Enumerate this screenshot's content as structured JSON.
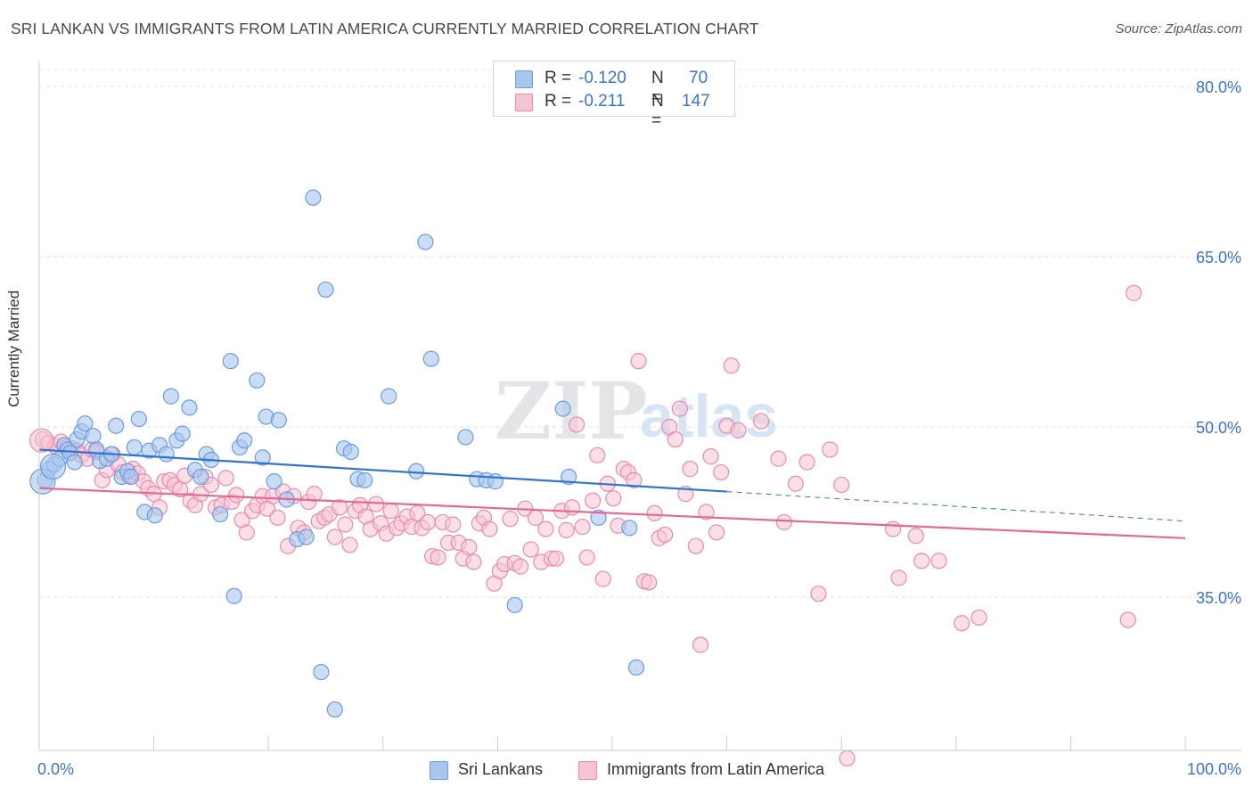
{
  "title": "SRI LANKAN VS IMMIGRANTS FROM LATIN AMERICA CURRENTLY MARRIED CORRELATION CHART",
  "source": "Source: ZipAtlas.com",
  "watermark": "ZIPatlas",
  "legend": {
    "series1": {
      "r_label": "R = ",
      "r_value": "-0.120",
      "n_label": "N = ",
      "n_value": "70"
    },
    "series2": {
      "r_label": "R = ",
      "r_value": "-0.211",
      "n_label": "N = ",
      "n_value": "147"
    }
  },
  "colors": {
    "blue_fill": "#a9c6ec",
    "blue_stroke": "#6b9be0",
    "blue_line": "#2f74d0",
    "pink_fill": "#f7c4d4",
    "pink_stroke": "#e98bab",
    "pink_line": "#e56894",
    "tick_label": "#3c74c8",
    "grid": "#dcdfe3"
  },
  "chart_data": {
    "type": "scatter",
    "title": "SRI LANKAN VS IMMIGRANTS FROM LATIN AMERICA CURRENTLY MARRIED CORRELATION CHART",
    "xlabel": "",
    "ylabel": "Currently Married",
    "xlim": [
      0,
      100
    ],
    "ylim": [
      20,
      82
    ],
    "x_tick_labels": [
      "0.0%",
      "100.0%"
    ],
    "y_ticks": [
      35,
      50,
      65,
      80
    ],
    "y_tick_labels": [
      "35.0%",
      "50.0%",
      "65.0%",
      "80.0%"
    ],
    "grid": true,
    "legend_position": "top-center",
    "series": [
      {
        "name": "Sri Lankans",
        "color": "#a9c6ec",
        "trend": {
          "x": [
            0,
            60
          ],
          "y": [
            48.0,
            44.3
          ],
          "dashed_to": [
            100,
            41.7
          ]
        },
        "points": [
          [
            0.5,
            45.3
          ],
          [
            0.9,
            46.3
          ],
          [
            1.3,
            46.7
          ],
          [
            1.8,
            47.2
          ],
          [
            2.2,
            48.4
          ],
          [
            2.5,
            48.0
          ],
          [
            2.7,
            47.7
          ],
          [
            3.1,
            46.9
          ],
          [
            3.3,
            48.9
          ],
          [
            3.7,
            49.6
          ],
          [
            4.0,
            50.3
          ],
          [
            4.7,
            49.2
          ],
          [
            5.0,
            48.0
          ],
          [
            5.3,
            47.0
          ],
          [
            5.9,
            47.2
          ],
          [
            6.3,
            47.6
          ],
          [
            6.7,
            50.1
          ],
          [
            7.2,
            45.6
          ],
          [
            7.7,
            46.1
          ],
          [
            8.0,
            45.6
          ],
          [
            8.3,
            48.2
          ],
          [
            8.7,
            50.7
          ],
          [
            9.2,
            42.5
          ],
          [
            9.6,
            47.9
          ],
          [
            10.1,
            42.2
          ],
          [
            10.5,
            48.4
          ],
          [
            11.1,
            47.6
          ],
          [
            11.5,
            52.7
          ],
          [
            12.0,
            48.8
          ],
          [
            12.5,
            49.4
          ],
          [
            13.1,
            51.7
          ],
          [
            13.6,
            46.2
          ],
          [
            14.1,
            45.6
          ],
          [
            14.6,
            47.6
          ],
          [
            15.0,
            47.1
          ],
          [
            15.8,
            42.3
          ],
          [
            16.7,
            55.8
          ],
          [
            17.0,
            35.1
          ],
          [
            17.5,
            48.2
          ],
          [
            17.9,
            48.8
          ],
          [
            19.0,
            54.1
          ],
          [
            19.5,
            47.3
          ],
          [
            19.8,
            50.9
          ],
          [
            20.5,
            45.2
          ],
          [
            20.9,
            50.6
          ],
          [
            21.6,
            43.6
          ],
          [
            22.5,
            40.1
          ],
          [
            23.3,
            40.3
          ],
          [
            23.9,
            70.2
          ],
          [
            24.6,
            28.4
          ],
          [
            25.0,
            62.1
          ],
          [
            25.8,
            25.1
          ],
          [
            26.6,
            48.1
          ],
          [
            27.2,
            47.8
          ],
          [
            27.8,
            45.4
          ],
          [
            28.4,
            45.3
          ],
          [
            30.5,
            52.7
          ],
          [
            32.9,
            46.1
          ],
          [
            33.7,
            66.3
          ],
          [
            34.2,
            56.0
          ],
          [
            37.2,
            49.1
          ],
          [
            38.2,
            45.4
          ],
          [
            39.0,
            45.3
          ],
          [
            39.8,
            45.2
          ],
          [
            41.5,
            34.3
          ],
          [
            45.7,
            51.6
          ],
          [
            46.2,
            45.6
          ],
          [
            52.1,
            28.8
          ],
          [
            48.8,
            42.0
          ],
          [
            51.5,
            41.1
          ]
        ],
        "large_points": [
          [
            0.3,
            45.2
          ],
          [
            1.2,
            46.5
          ]
        ]
      },
      {
        "name": "Immigrants from Latin America",
        "color": "#f7c4d4",
        "trend": {
          "x": [
            0,
            100
          ],
          "y": [
            44.6,
            40.2
          ]
        },
        "points": [
          [
            0.3,
            48.9
          ],
          [
            0.8,
            48.6
          ],
          [
            1.4,
            48.3
          ],
          [
            1.9,
            48.7
          ],
          [
            2.4,
            48.2
          ],
          [
            2.9,
            48.1
          ],
          [
            3.3,
            47.9
          ],
          [
            3.7,
            47.5
          ],
          [
            4.2,
            47.2
          ],
          [
            4.6,
            48.0
          ],
          [
            5.0,
            47.8
          ],
          [
            5.5,
            45.3
          ],
          [
            5.9,
            46.2
          ],
          [
            6.4,
            47.6
          ],
          [
            6.9,
            46.7
          ],
          [
            7.3,
            46.0
          ],
          [
            7.8,
            45.7
          ],
          [
            8.2,
            46.3
          ],
          [
            8.6,
            45.9
          ],
          [
            9.1,
            45.2
          ],
          [
            9.5,
            44.6
          ],
          [
            10.0,
            44.1
          ],
          [
            10.5,
            42.9
          ],
          [
            10.9,
            45.2
          ],
          [
            11.4,
            45.3
          ],
          [
            11.8,
            44.9
          ],
          [
            12.3,
            44.5
          ],
          [
            12.7,
            45.7
          ],
          [
            13.2,
            43.5
          ],
          [
            13.6,
            43.1
          ],
          [
            14.1,
            44.1
          ],
          [
            14.5,
            45.6
          ],
          [
            15.0,
            44.9
          ],
          [
            15.4,
            42.9
          ],
          [
            15.9,
            43.1
          ],
          [
            16.3,
            45.5
          ],
          [
            16.8,
            43.4
          ],
          [
            17.2,
            44.0
          ],
          [
            17.7,
            41.8
          ],
          [
            18.1,
            40.7
          ],
          [
            18.6,
            42.6
          ],
          [
            19.0,
            43.1
          ],
          [
            19.5,
            43.9
          ],
          [
            19.9,
            42.8
          ],
          [
            20.4,
            43.9
          ],
          [
            20.8,
            42.0
          ],
          [
            21.3,
            44.3
          ],
          [
            21.7,
            39.5
          ],
          [
            22.2,
            43.9
          ],
          [
            22.6,
            41.1
          ],
          [
            23.1,
            40.7
          ],
          [
            23.5,
            43.4
          ],
          [
            24.0,
            44.1
          ],
          [
            24.4,
            41.7
          ],
          [
            24.9,
            42.0
          ],
          [
            25.3,
            42.3
          ],
          [
            25.8,
            40.3
          ],
          [
            26.2,
            42.9
          ],
          [
            26.7,
            41.4
          ],
          [
            27.1,
            39.6
          ],
          [
            27.6,
            42.6
          ],
          [
            28.0,
            43.1
          ],
          [
            28.5,
            42.1
          ],
          [
            28.9,
            41.0
          ],
          [
            29.4,
            43.2
          ],
          [
            29.8,
            41.5
          ],
          [
            30.3,
            40.6
          ],
          [
            30.7,
            42.6
          ],
          [
            31.2,
            41.1
          ],
          [
            31.6,
            41.5
          ],
          [
            32.1,
            42.1
          ],
          [
            32.5,
            41.2
          ],
          [
            33.0,
            42.4
          ],
          [
            33.4,
            41.1
          ],
          [
            33.9,
            41.6
          ],
          [
            34.3,
            38.6
          ],
          [
            34.8,
            38.5
          ],
          [
            35.2,
            41.6
          ],
          [
            35.7,
            39.8
          ],
          [
            36.1,
            41.4
          ],
          [
            36.6,
            39.8
          ],
          [
            37.0,
            38.4
          ],
          [
            37.5,
            39.4
          ],
          [
            37.9,
            38.1
          ],
          [
            38.4,
            41.5
          ],
          [
            38.8,
            42.0
          ],
          [
            39.3,
            41.0
          ],
          [
            39.7,
            36.2
          ],
          [
            40.2,
            37.3
          ],
          [
            40.6,
            37.9
          ],
          [
            41.1,
            41.9
          ],
          [
            41.5,
            38.0
          ],
          [
            42.0,
            37.7
          ],
          [
            42.4,
            42.8
          ],
          [
            42.9,
            39.2
          ],
          [
            43.3,
            42.0
          ],
          [
            43.8,
            38.1
          ],
          [
            44.2,
            41.0
          ],
          [
            44.7,
            38.4
          ],
          [
            45.1,
            38.4
          ],
          [
            45.6,
            42.6
          ],
          [
            46.0,
            40.9
          ],
          [
            46.5,
            42.9
          ],
          [
            46.9,
            50.2
          ],
          [
            47.4,
            41.2
          ],
          [
            47.8,
            38.5
          ],
          [
            48.3,
            43.5
          ],
          [
            48.7,
            47.5
          ],
          [
            49.2,
            36.6
          ],
          [
            49.6,
            45.0
          ],
          [
            50.1,
            43.7
          ],
          [
            50.5,
            41.3
          ],
          [
            51.0,
            46.3
          ],
          [
            51.4,
            46.0
          ],
          [
            51.9,
            45.3
          ],
          [
            52.3,
            55.8
          ],
          [
            52.8,
            36.4
          ],
          [
            53.2,
            36.3
          ],
          [
            53.7,
            42.4
          ],
          [
            54.1,
            40.2
          ],
          [
            54.6,
            40.5
          ],
          [
            55.0,
            50.0
          ],
          [
            55.5,
            48.9
          ],
          [
            55.9,
            51.6
          ],
          [
            56.4,
            44.1
          ],
          [
            56.8,
            46.3
          ],
          [
            57.3,
            39.5
          ],
          [
            57.7,
            30.8
          ],
          [
            58.2,
            42.5
          ],
          [
            58.6,
            47.4
          ],
          [
            59.1,
            40.7
          ],
          [
            59.5,
            46.0
          ],
          [
            60.0,
            50.1
          ],
          [
            60.4,
            55.4
          ],
          [
            61.0,
            49.7
          ],
          [
            63.0,
            50.5
          ],
          [
            64.5,
            47.2
          ],
          [
            65.0,
            41.6
          ],
          [
            66.0,
            45.0
          ],
          [
            67.0,
            46.9
          ],
          [
            68.0,
            35.3
          ],
          [
            69.0,
            48.0
          ],
          [
            70.0,
            44.9
          ],
          [
            70.5,
            20.8
          ],
          [
            74.5,
            41.0
          ],
          [
            75.0,
            36.7
          ],
          [
            76.5,
            40.4
          ],
          [
            77.0,
            38.2
          ],
          [
            78.5,
            38.2
          ],
          [
            80.5,
            32.7
          ],
          [
            82.0,
            33.2
          ],
          [
            95.0,
            33.0
          ],
          [
            95.5,
            61.8
          ]
        ],
        "large_points": [
          [
            0.2,
            48.8
          ]
        ]
      }
    ]
  },
  "bottom_legend": {
    "item1": "Sri Lankans",
    "item2": "Immigrants from Latin America"
  }
}
